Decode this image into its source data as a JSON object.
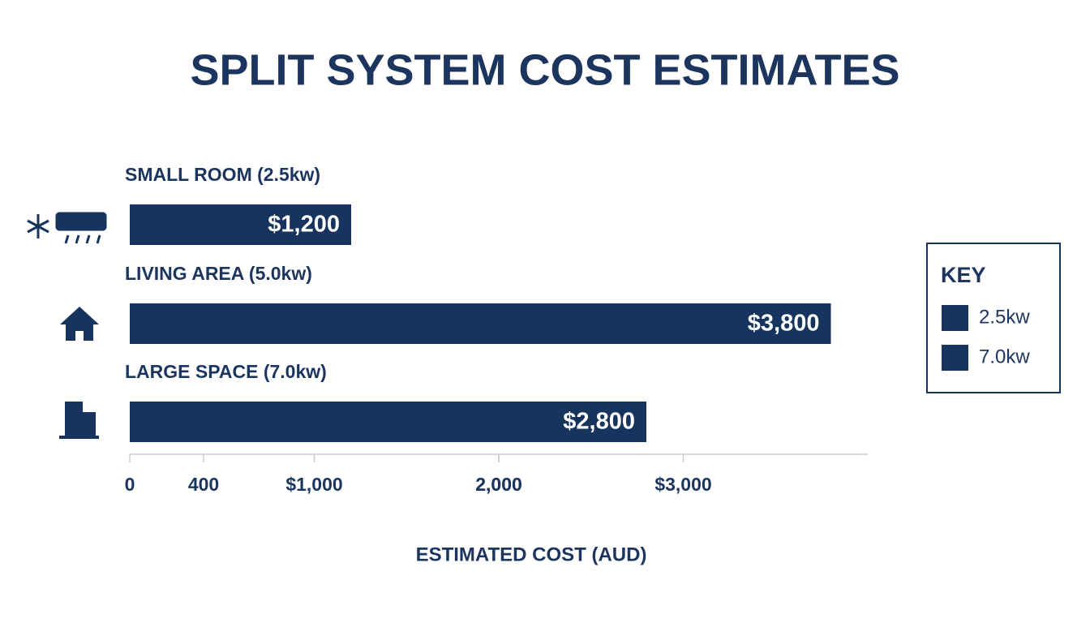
{
  "chart_data": {
    "type": "hbar",
    "title": "SPLIT SYSTEM COST ESTIMATES",
    "categories": [
      "SMALL ROOM (2.5kw)",
      "LIVING AREA (5.0kw)",
      "LARGE SPACE (7.0kw)"
    ],
    "values": [
      1200,
      3800,
      2800
    ],
    "value_labels": [
      "$1,200",
      "$3,800",
      "$2,800"
    ],
    "color": "#16345e",
    "xlim": [
      0,
      4000
    ],
    "xticks": [
      0,
      {
        "value": 1000,
        "label": "$1,000"
      },
      {
        "value": 2000,
        "label": "2,000"
      },
      {
        "value": 2000,
        "label": "2,000"
      },
      {
        "value": 3000,
        "label": "$3,000"
      },
      400
    ],
    "xlabel": "ESTIMATED COST (AUD)",
    "legend": {
      "title": "KEY",
      "items": [
        {
          "label": "2.5kw",
          "color": "#16345e"
        },
        {
          "label": "7.0kw",
          "color": "#16345e"
        }
      ]
    }
  }
}
